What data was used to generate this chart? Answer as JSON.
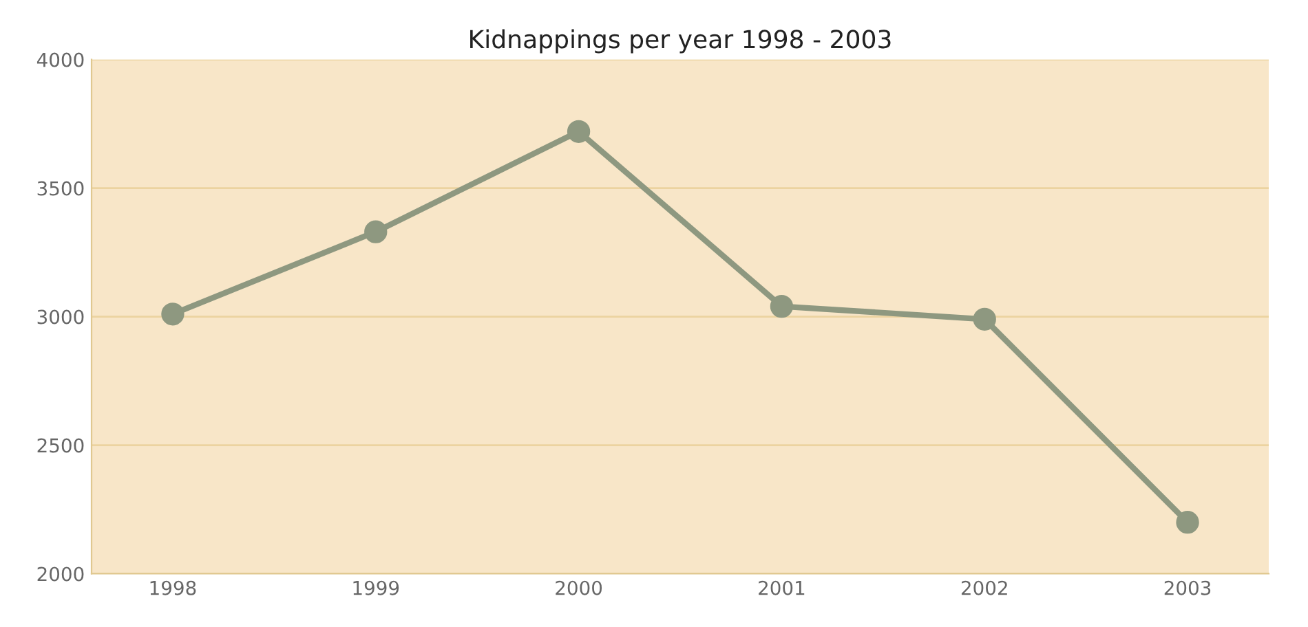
{
  "chart_data": {
    "type": "line",
    "title": "Kidnappings per year 1998 - 2003",
    "categories": [
      "1998",
      "1999",
      "2000",
      "2001",
      "2002",
      "2003"
    ],
    "series": [
      {
        "color": "#8e9880",
        "values": [
          3010,
          3330,
          3720,
          3040,
          2990,
          2200
        ]
      }
    ],
    "ylim": [
      2000,
      4000
    ],
    "yticks": [
      2000,
      2500,
      3000,
      3500,
      4000
    ],
    "grid": "y",
    "marker": "circle",
    "line_style": "solid"
  }
}
